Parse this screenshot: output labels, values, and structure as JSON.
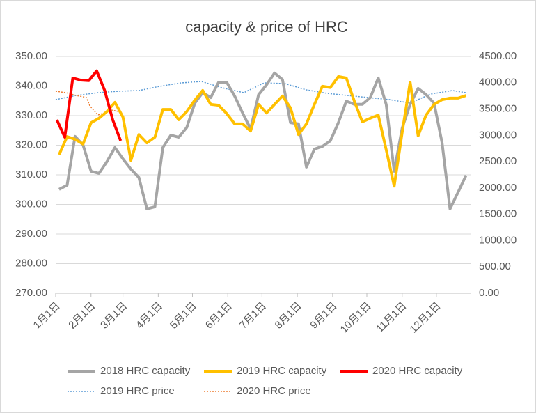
{
  "chart_data": {
    "type": "line",
    "title": "capacity & price of HRC",
    "xlim": [
      1,
      365
    ],
    "xticks": [
      {
        "value": 1,
        "label": "1月1日"
      },
      {
        "value": 32,
        "label": "2月1日"
      },
      {
        "value": 60,
        "label": "3月1日"
      },
      {
        "value": 91,
        "label": "4月1日"
      },
      {
        "value": 121,
        "label": "5月1日"
      },
      {
        "value": 152,
        "label": "6月1日"
      },
      {
        "value": 182,
        "label": "7月1日"
      },
      {
        "value": 213,
        "label": "8月1日"
      },
      {
        "value": 244,
        "label": "9月1日"
      },
      {
        "value": 274,
        "label": "10月1日"
      },
      {
        "value": 305,
        "label": "11月1日"
      },
      {
        "value": 335,
        "label": "12月1日"
      }
    ],
    "ylim": [
      270,
      350
    ],
    "yticks": [
      {
        "value": 270,
        "label": "270.00"
      },
      {
        "value": 280,
        "label": "280.00"
      },
      {
        "value": 290,
        "label": "290.00"
      },
      {
        "value": 300,
        "label": "300.00"
      },
      {
        "value": 310,
        "label": "310.00"
      },
      {
        "value": 320,
        "label": "320.00"
      },
      {
        "value": 330,
        "label": "330.00"
      },
      {
        "value": 340,
        "label": "340.00"
      },
      {
        "value": 350,
        "label": "350.00"
      }
    ],
    "y2lim": [
      0,
      4500
    ],
    "y2ticks": [
      {
        "value": 0,
        "label": "0.00"
      },
      {
        "value": 500,
        "label": "500.00"
      },
      {
        "value": 1000,
        "label": "1000.00"
      },
      {
        "value": 1500,
        "label": "1500.00"
      },
      {
        "value": 2000,
        "label": "2000.00"
      },
      {
        "value": 2500,
        "label": "2500.00"
      },
      {
        "value": 3000,
        "label": "3000.00"
      },
      {
        "value": 3500,
        "label": "3500.00"
      },
      {
        "value": 4000,
        "label": "4000.00"
      },
      {
        "value": 4500,
        "label": "4500.00"
      }
    ],
    "grid": true,
    "legend": "bottom",
    "series": [
      {
        "name": "2018 HRC capacity",
        "color": "#a5a5a5",
        "style": "solid",
        "x": [
          4,
          11,
          18,
          25,
          32,
          39,
          46,
          53,
          60,
          67,
          74,
          81,
          88,
          95,
          102,
          109,
          116,
          123,
          130,
          137,
          144,
          151,
          158,
          165,
          172,
          179,
          186,
          193,
          200,
          207,
          214,
          221,
          228,
          235,
          242,
          249,
          256,
          263,
          270,
          277,
          284,
          291,
          298,
          305,
          312,
          319,
          326,
          333,
          340,
          347,
          354,
          361
        ],
        "values": [
          305.1,
          306.5,
          323.0,
          320.1,
          311.2,
          310.5,
          314.5,
          319.2,
          315.4,
          311.9,
          309.1,
          298.5,
          299.2,
          319.2,
          323.4,
          322.7,
          326.0,
          334.2,
          337.8,
          336.1,
          341.3,
          341.3,
          336.6,
          330.9,
          325.5,
          337.1,
          340.4,
          344.4,
          342.2,
          327.6,
          327.2,
          312.6,
          318.7,
          319.6,
          321.5,
          327.6,
          334.9,
          333.8,
          333.8,
          336.1,
          342.7,
          333.8,
          311.2,
          325.8,
          333.8,
          339.2,
          337.1,
          334.2,
          320.8,
          298.5,
          304.1,
          309.8
        ]
      },
      {
        "name": "2019 HRC capacity",
        "color": "#ffc000",
        "style": "solid",
        "x": [
          4,
          11,
          18,
          25,
          32,
          39,
          46,
          53,
          60,
          67,
          74,
          81,
          88,
          95,
          102,
          109,
          116,
          123,
          130,
          137,
          144,
          151,
          158,
          165,
          172,
          179,
          186,
          193,
          200,
          207,
          214,
          221,
          228,
          235,
          242,
          249,
          256,
          263,
          270,
          277,
          284,
          291,
          298,
          305,
          312,
          319,
          326,
          333,
          340,
          347,
          354,
          361
        ],
        "values": [
          316.8,
          322.9,
          322.0,
          320.4,
          327.6,
          329.1,
          331.4,
          334.5,
          329.5,
          314.9,
          323.6,
          320.8,
          322.7,
          332.1,
          332.1,
          328.6,
          331.4,
          335.2,
          338.5,
          333.8,
          333.5,
          330.7,
          327.2,
          327.2,
          324.8,
          333.8,
          330.9,
          333.8,
          336.6,
          332.6,
          323.6,
          327.2,
          333.8,
          339.9,
          339.5,
          343.2,
          342.7,
          334.9,
          327.9,
          329.1,
          330.2,
          318.5,
          306.2,
          324.4,
          341.3,
          323.2,
          330.2,
          333.8,
          335.4,
          335.9,
          335.9,
          336.8
        ]
      },
      {
        "name": "2020 HRC capacity",
        "color": "#ff0000",
        "style": "solid",
        "x": [
          2,
          9,
          16,
          23,
          30,
          37,
          44,
          51,
          58
        ],
        "values": [
          328.6,
          322.7,
          342.7,
          342.0,
          341.8,
          345.1,
          338.5,
          328.6,
          321.5
        ]
      },
      {
        "name": "2019 HRC price",
        "color": "#5b9bd5",
        "style": "dotted",
        "axis": "y2",
        "x": [
          1,
          19,
          38,
          56,
          74,
          92,
          111,
          129,
          147,
          166,
          184,
          202,
          221,
          239,
          257,
          275,
          294,
          312,
          330,
          349,
          361
        ],
        "values": [
          3679,
          3759,
          3812,
          3838,
          3851,
          3931,
          3997,
          4024,
          3904,
          3812,
          3997,
          3984,
          3865,
          3798,
          3759,
          3719,
          3679,
          3613,
          3785,
          3851,
          3812
        ]
      },
      {
        "name": "2020 HRC price",
        "color": "#ed7d31",
        "style": "dotted",
        "axis": "y2",
        "x": [
          1,
          10,
          19,
          28,
          31,
          38,
          44,
          50,
          56
        ],
        "values": [
          3838,
          3812,
          3759,
          3719,
          3560,
          3388,
          3428,
          3481,
          3455
        ]
      }
    ]
  }
}
